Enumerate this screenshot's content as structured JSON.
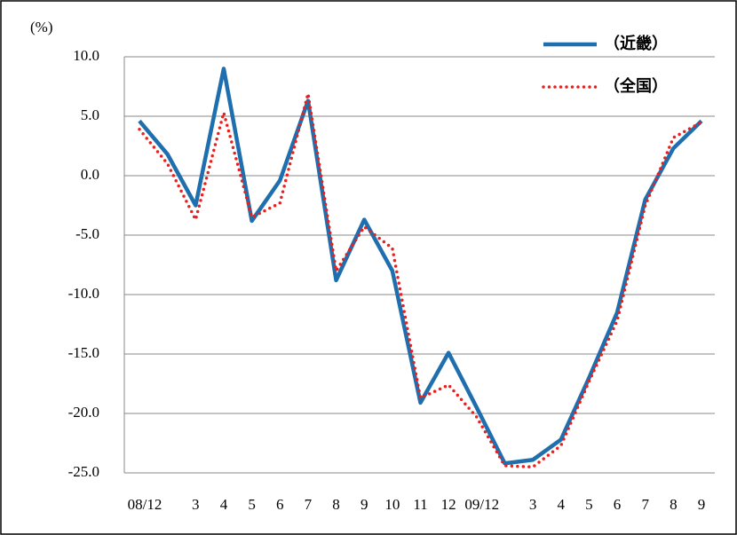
{
  "chart_data": {
    "type": "line",
    "y_label": "(%)",
    "categories": [
      "08/12",
      null,
      "3",
      "4",
      "5",
      "6",
      "7",
      "8",
      "9",
      "10",
      "11",
      "12",
      "09/12",
      null,
      "3",
      "4",
      "5",
      "6",
      "7",
      "8",
      "9"
    ],
    "series": [
      {
        "name": "（近畿）",
        "color": "#1f6fae",
        "values": [
          4.6,
          1.8,
          -2.5,
          9.0,
          -3.8,
          -0.4,
          6.3,
          -8.8,
          -3.7,
          -8.0,
          -19.1,
          -14.9,
          -19.5,
          -24.2,
          -23.9,
          -22.2,
          -17.0,
          -11.5,
          -2.0,
          2.3,
          4.6
        ]
      },
      {
        "name": "（全国）",
        "color": "#e8201e",
        "values": [
          3.9,
          1.0,
          -3.7,
          5.3,
          -3.5,
          -2.3,
          6.9,
          -8.0,
          -4.3,
          -6.1,
          -18.7,
          -17.6,
          -20.3,
          -24.4,
          -24.5,
          -22.7,
          -17.3,
          -12.2,
          -2.5,
          3.2,
          4.5
        ]
      }
    ],
    "ylim": [
      -25,
      10
    ],
    "yticks": [
      {
        "value": 10,
        "label": "10.0"
      },
      {
        "value": 5,
        "label": "5.0"
      },
      {
        "value": 0,
        "label": "0.0"
      },
      {
        "value": -5,
        "label": "-5.0"
      },
      {
        "value": -10,
        "label": "-10.0"
      },
      {
        "value": -15,
        "label": "-15.0"
      },
      {
        "value": -20,
        "label": "-20.0"
      },
      {
        "value": -25,
        "label": "-25.0"
      }
    ],
    "grid": true
  }
}
